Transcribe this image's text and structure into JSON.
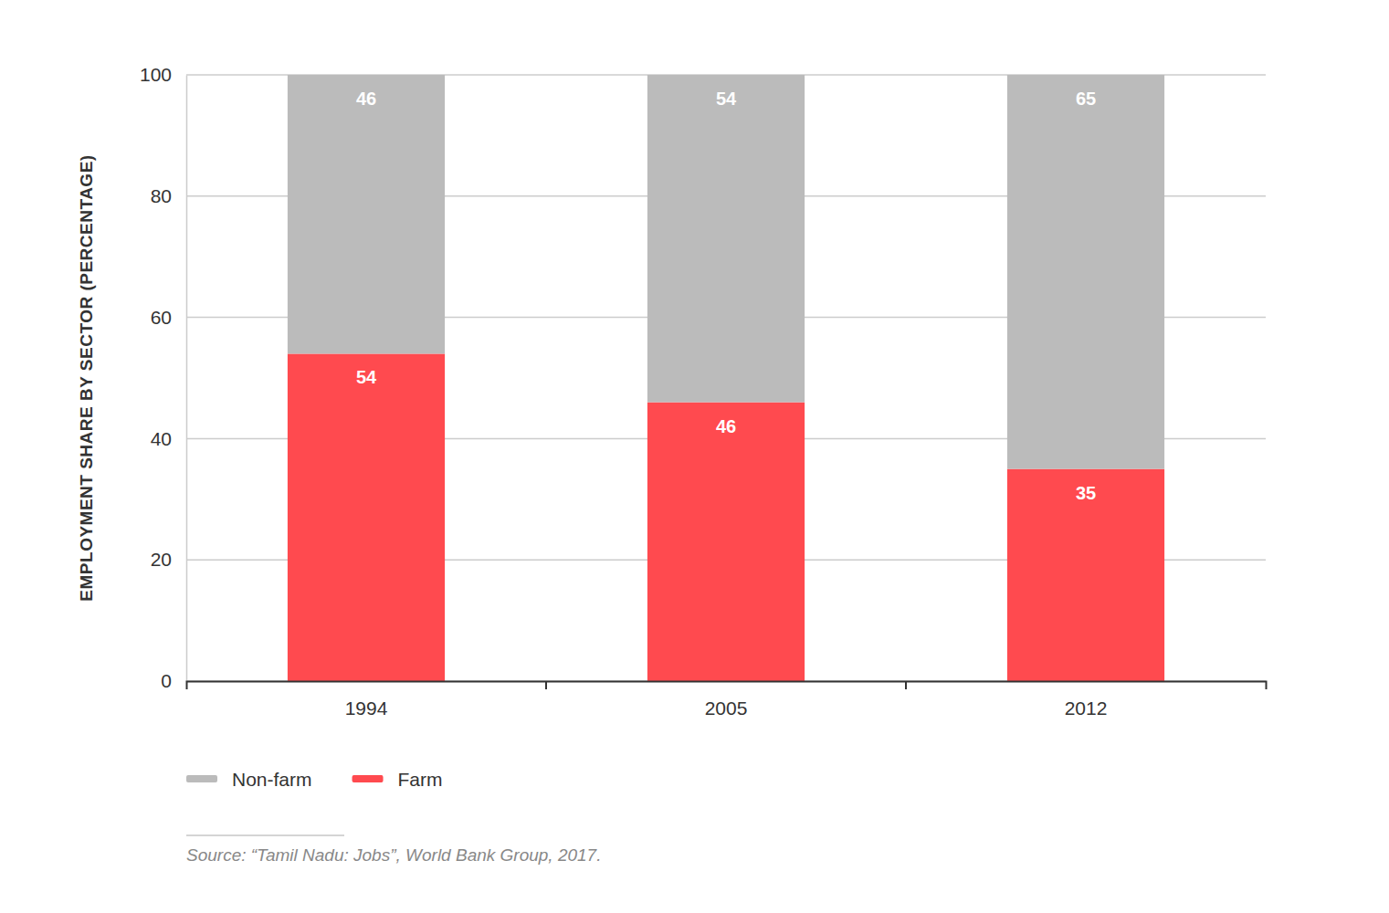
{
  "chart_data": {
    "type": "bar",
    "stacked": true,
    "data_labels": true,
    "grid": true,
    "legend": "bottom-left",
    "y_label": "EMPLOYMENT SHARE BY SECTOR (PERCENTAGE)",
    "categories": [
      "1994",
      "2005",
      "2012"
    ],
    "series": [
      {
        "name": "Non-farm",
        "color": "#bbbbbb",
        "values": [
          46,
          54,
          65
        ]
      },
      {
        "name": "Farm",
        "color": "#ff4a4f",
        "values": [
          54,
          46,
          35
        ]
      }
    ],
    "ylim": [
      0,
      100
    ],
    "yticks": [
      0,
      20,
      40,
      60,
      80,
      100
    ],
    "source": "Source: “Tamil Nadu: Jobs”, World Bank Group, 2017."
  }
}
